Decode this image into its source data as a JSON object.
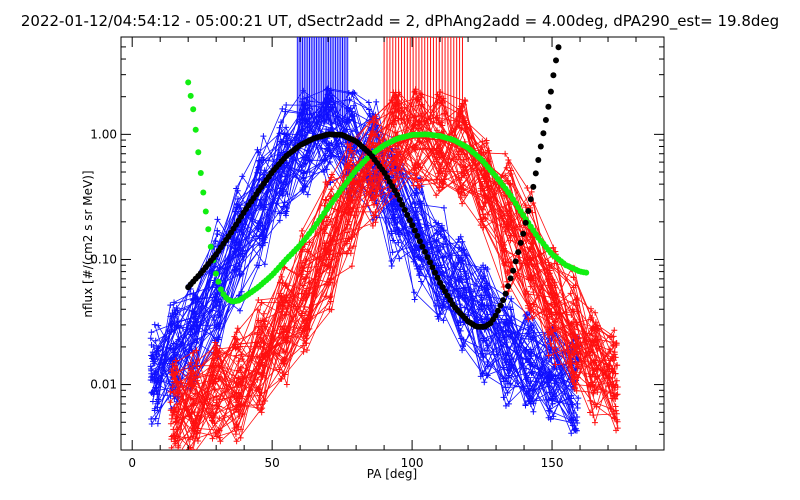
{
  "chart_data": {
    "type": "line",
    "title": "2022-01-12/04:54:12 - 05:00:21 UT, dSectr2add = 2, dPhAng2add = 4.00deg, dPA290_est=  19.8deg",
    "xlabel": "PA [deg]",
    "ylabel": "nflux [#/(cm2 s sr MeV)]",
    "xlim": [
      -4,
      190
    ],
    "ylim": [
      0.003,
      6.0
    ],
    "yscale": "log",
    "grid": false,
    "x_ticks": [
      0,
      50,
      100,
      150
    ],
    "x_tick_labels": [
      "0",
      "50",
      "100",
      "150"
    ],
    "y_ticks": [
      0.01,
      0.1,
      1.0
    ],
    "y_tick_labels": [
      "0.01",
      "0.10",
      "1.00"
    ],
    "colors": {
      "blue_series": "#1010ff",
      "red_series": "#ff1010",
      "green_fit": "#11ee11",
      "black_fit": "#000000",
      "axis": "#000000",
      "background": "#ffffff"
    },
    "series": [
      {
        "color": "blue",
        "marker": "+",
        "x": [
          8,
          15,
          22,
          30,
          38,
          46,
          54,
          62,
          70,
          78,
          86,
          94,
          102,
          110,
          118,
          126,
          134,
          142,
          150,
          158
        ],
        "y": [
          0.012,
          0.018,
          0.03,
          0.06,
          0.13,
          0.3,
          0.6,
          0.9,
          1.0,
          0.95,
          0.6,
          0.3,
          0.15,
          0.08,
          0.05,
          0.03,
          0.02,
          0.015,
          0.012,
          0.01
        ]
      },
      {
        "color": "red",
        "marker": "+",
        "x": [
          15,
          22,
          30,
          38,
          46,
          54,
          62,
          70,
          78,
          86,
          94,
          102,
          110,
          118,
          126,
          134,
          142,
          150,
          158,
          165,
          172
        ],
        "y": [
          0.006,
          0.007,
          0.008,
          0.01,
          0.015,
          0.025,
          0.05,
          0.12,
          0.3,
          0.6,
          0.85,
          0.95,
          0.9,
          0.75,
          0.45,
          0.2,
          0.1,
          0.05,
          0.025,
          0.015,
          0.01
        ]
      },
      {
        "color": "green",
        "marker": "dot",
        "x": [
          20,
          22,
          24,
          26,
          28,
          30,
          32,
          34,
          36,
          38,
          40,
          45,
          50,
          55,
          60,
          65,
          70,
          75,
          80,
          85,
          90,
          95,
          100,
          105,
          110,
          115,
          120,
          125,
          130,
          135,
          140,
          145,
          150,
          155,
          160,
          163
        ],
        "y": [
          2.6,
          1.5,
          0.6,
          0.27,
          0.13,
          0.075,
          0.055,
          0.048,
          0.046,
          0.047,
          0.05,
          0.06,
          0.075,
          0.1,
          0.13,
          0.18,
          0.26,
          0.37,
          0.52,
          0.68,
          0.82,
          0.93,
          0.99,
          1.0,
          0.97,
          0.9,
          0.78,
          0.62,
          0.46,
          0.33,
          0.22,
          0.15,
          0.11,
          0.09,
          0.08,
          0.078
        ]
      },
      {
        "color": "black",
        "marker": "dot",
        "x": [
          20,
          25,
          30,
          35,
          40,
          45,
          50,
          55,
          60,
          65,
          70,
          75,
          80,
          85,
          90,
          95,
          100,
          105,
          110,
          115,
          120,
          123,
          126,
          128,
          130,
          133,
          136,
          140,
          143,
          146,
          149,
          151,
          153
        ],
        "y": [
          0.06,
          0.08,
          0.11,
          0.16,
          0.24,
          0.35,
          0.5,
          0.67,
          0.82,
          0.93,
          1.0,
          0.99,
          0.88,
          0.7,
          0.5,
          0.32,
          0.19,
          0.11,
          0.065,
          0.042,
          0.032,
          0.029,
          0.029,
          0.031,
          0.036,
          0.05,
          0.08,
          0.17,
          0.35,
          0.8,
          1.8,
          3.5,
          6.0
        ]
      }
    ]
  }
}
